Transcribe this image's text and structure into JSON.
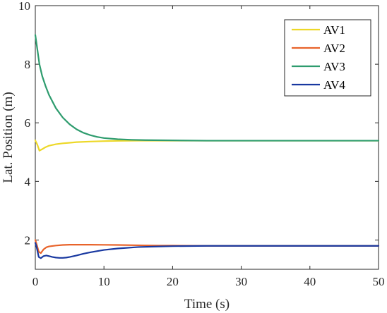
{
  "chart_data": {
    "type": "line",
    "xlabel": "Time (s)",
    "ylabel": "Lat. Position (m)",
    "xlim": [
      0,
      50
    ],
    "ylim": [
      1,
      10
    ],
    "xticks": [
      "0",
      "10",
      "20",
      "30",
      "40",
      "50"
    ],
    "yticks": [
      "2",
      "4",
      "6",
      "8",
      "10"
    ],
    "grid": false,
    "legend_position": "top-right",
    "series": [
      {
        "name": "AV1",
        "color": "#EDD828",
        "x": [
          0,
          0.3,
          0.6,
          1,
          1.5,
          2,
          3,
          4,
          5,
          6,
          8,
          10,
          12,
          15,
          20,
          30,
          40,
          50
        ],
        "y": [
          5.4,
          5.25,
          5.05,
          5.1,
          5.17,
          5.22,
          5.27,
          5.3,
          5.32,
          5.34,
          5.36,
          5.375,
          5.385,
          5.39,
          5.39,
          5.39,
          5.39,
          5.39
        ]
      },
      {
        "name": "AV2",
        "color": "#E8632A",
        "x": [
          0,
          0.2,
          0.5,
          0.8,
          1.2,
          1.6,
          2,
          3,
          4,
          5,
          6,
          8,
          10,
          12,
          15,
          18,
          20,
          25,
          30,
          40,
          50
        ],
        "y": [
          2.0,
          1.85,
          1.6,
          1.55,
          1.68,
          1.75,
          1.78,
          1.81,
          1.83,
          1.84,
          1.84,
          1.84,
          1.835,
          1.83,
          1.82,
          1.81,
          1.81,
          1.8,
          1.8,
          1.8,
          1.8
        ]
      },
      {
        "name": "AV3",
        "color": "#2E9C6E",
        "x": [
          0,
          0.3,
          0.6,
          1,
          1.5,
          2,
          3,
          4,
          5,
          6,
          7,
          8,
          9,
          10,
          12,
          14,
          16,
          20,
          25,
          30,
          40,
          50
        ],
        "y": [
          9.0,
          8.5,
          8.0,
          7.6,
          7.25,
          6.95,
          6.5,
          6.18,
          5.95,
          5.78,
          5.66,
          5.58,
          5.52,
          5.48,
          5.44,
          5.42,
          5.41,
          5.4,
          5.39,
          5.39,
          5.39,
          5.39
        ]
      },
      {
        "name": "AV4",
        "color": "#1838A0",
        "x": [
          0,
          0.2,
          0.5,
          0.8,
          1.2,
          1.6,
          2,
          2.5,
          3,
          3.5,
          4,
          4.5,
          5,
          6,
          7,
          8,
          10,
          12,
          15,
          18,
          20,
          25,
          30,
          40,
          50
        ],
        "y": [
          1.9,
          1.75,
          1.42,
          1.38,
          1.45,
          1.47,
          1.45,
          1.42,
          1.4,
          1.39,
          1.39,
          1.4,
          1.42,
          1.47,
          1.53,
          1.58,
          1.66,
          1.71,
          1.76,
          1.78,
          1.79,
          1.8,
          1.8,
          1.8,
          1.8
        ]
      }
    ]
  }
}
